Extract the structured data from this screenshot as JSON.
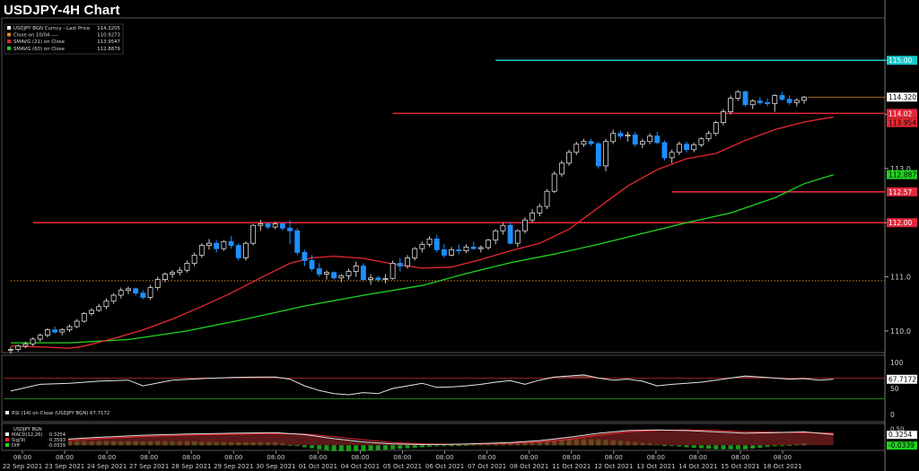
{
  "title": "USDJPY-4H Chart",
  "colors": {
    "background": "#000000",
    "frame": "#8a8a8a",
    "up_candle": "#ffffff",
    "down_candle": "#1e8fff",
    "sma21": "#e8282f",
    "sma60": "#1fd51f",
    "resistance": "#e0283c",
    "target": "#18c8cc",
    "close_ref": "#e08a20",
    "last_price": "#ffffff"
  },
  "chart_data": {
    "type": "candlestick",
    "title": "USDJPY-4H Chart",
    "legend": {
      "placement": "top-left",
      "entries": [
        {
          "label": "USDJPY BGN Curncy - Last Price",
          "value": "114.3205",
          "color": "#ffffff"
        },
        {
          "label": "Close on 10/04 ----",
          "value": "110.9273",
          "color": "#e08a20"
        },
        {
          "label": "SMAVG (21) on Close",
          "value": "113.9547",
          "color": "#e8282f"
        },
        {
          "label": "SMAVG (60) on Close",
          "value": "112.8879",
          "color": "#1fd51f"
        }
      ]
    },
    "y_range": [
      109.6,
      115.75
    ],
    "y_ticks": [
      "110.0",
      "111.0",
      "112.0",
      "113.0",
      "114.0",
      "115.0"
    ],
    "x_date_labels": [
      "22 Sep 2021",
      "23 Sep 2021",
      "24 Sep 2021",
      "27 Sep 2021",
      "28 Sep 2021",
      "29 Sep 2021",
      "30 Sep 2021",
      "01 Oct 2021",
      "04 Oct 2021",
      "05 Oct 2021",
      "06 Oct 2021",
      "07 Oct 2021",
      "08 Oct 2021",
      "11 Oct 2021",
      "12 Oct 2021",
      "13 Oct 2021",
      "14 Oct 2021",
      "15 Oct 2021",
      "18 Oct 2021"
    ],
    "x_time_label": "08:00",
    "horizontal_levels": [
      {
        "value": 115.0,
        "label": "115.00",
        "color": "#18c8cc",
        "start_bar": 66
      },
      {
        "value": 114.02,
        "label": "114.02",
        "color": "#e0283c",
        "start_bar": 52
      },
      {
        "value": 112.57,
        "label": "112.57",
        "color": "#e0283c",
        "start_bar": 90
      },
      {
        "value": 112.0,
        "label": "112.00",
        "color": "#e0283c",
        "start_bar": 3
      },
      {
        "value": 110.9273,
        "label": "110.9273",
        "color": "#e08a20",
        "style": "dotted",
        "start_bar": 0
      }
    ],
    "last_price_label": "114.3205",
    "sma21_label": "113.9547",
    "sma60_label": "112.8879",
    "candles_ohlc": [
      [
        109.65,
        109.7,
        109.58,
        109.66
      ],
      [
        109.66,
        109.75,
        109.62,
        109.72
      ],
      [
        109.72,
        109.8,
        109.68,
        109.76
      ],
      [
        109.76,
        109.88,
        109.72,
        109.85
      ],
      [
        109.85,
        109.95,
        109.8,
        109.92
      ],
      [
        109.92,
        110.05,
        109.88,
        110.02
      ],
      [
        110.02,
        110.08,
        109.95,
        109.98
      ],
      [
        109.98,
        110.05,
        109.92,
        110.02
      ],
      [
        110.02,
        110.12,
        109.98,
        110.08
      ],
      [
        110.08,
        110.22,
        110.05,
        110.18
      ],
      [
        110.18,
        110.35,
        110.15,
        110.32
      ],
      [
        110.32,
        110.42,
        110.28,
        110.38
      ],
      [
        110.38,
        110.5,
        110.35,
        110.45
      ],
      [
        110.45,
        110.6,
        110.4,
        110.55
      ],
      [
        110.55,
        110.7,
        110.5,
        110.66
      ],
      [
        110.66,
        110.8,
        110.6,
        110.75
      ],
      [
        110.75,
        110.82,
        110.68,
        110.78
      ],
      [
        110.78,
        110.8,
        110.65,
        110.7
      ],
      [
        110.7,
        110.75,
        110.58,
        110.62
      ],
      [
        110.62,
        110.85,
        110.58,
        110.8
      ],
      [
        110.8,
        111.0,
        110.75,
        110.95
      ],
      [
        110.95,
        111.08,
        110.9,
        111.05
      ],
      [
        111.05,
        111.12,
        110.98,
        111.08
      ],
      [
        111.08,
        111.18,
        111.02,
        111.12
      ],
      [
        111.12,
        111.3,
        111.08,
        111.25
      ],
      [
        111.25,
        111.45,
        111.2,
        111.4
      ],
      [
        111.4,
        111.62,
        111.35,
        111.58
      ],
      [
        111.58,
        111.7,
        111.5,
        111.62
      ],
      [
        111.62,
        111.68,
        111.45,
        111.52
      ],
      [
        111.52,
        111.68,
        111.48,
        111.65
      ],
      [
        111.65,
        111.75,
        111.52,
        111.58
      ],
      [
        111.58,
        111.62,
        111.3,
        111.35
      ],
      [
        111.35,
        111.65,
        111.3,
        111.62
      ],
      [
        111.62,
        111.98,
        111.58,
        111.95
      ],
      [
        111.95,
        112.05,
        111.85,
        111.98
      ],
      [
        111.98,
        112.0,
        111.88,
        111.92
      ],
      [
        111.92,
        112.02,
        111.88,
        111.98
      ],
      [
        111.98,
        112.0,
        111.85,
        111.9
      ],
      [
        111.9,
        112.05,
        111.6,
        111.85
      ],
      [
        111.85,
        111.9,
        111.4,
        111.45
      ],
      [
        111.45,
        111.5,
        111.2,
        111.3
      ],
      [
        111.3,
        111.4,
        111.1,
        111.15
      ],
      [
        111.15,
        111.25,
        111.0,
        111.05
      ],
      [
        111.05,
        111.12,
        110.95,
        111.08
      ],
      [
        111.08,
        111.1,
        110.95,
        110.98
      ],
      [
        110.98,
        111.05,
        110.9,
        111.02
      ],
      [
        111.02,
        111.15,
        110.95,
        111.1
      ],
      [
        111.1,
        111.28,
        111.0,
        111.2
      ],
      [
        111.2,
        111.25,
        110.9,
        110.95
      ],
      [
        110.95,
        111.05,
        110.85,
        110.98
      ],
      [
        110.98,
        111.02,
        110.9,
        110.95
      ],
      [
        110.95,
        111.05,
        110.88,
        110.97
      ],
      [
        110.97,
        111.3,
        110.95,
        111.25
      ],
      [
        111.25,
        111.35,
        111.1,
        111.2
      ],
      [
        111.2,
        111.4,
        111.15,
        111.35
      ],
      [
        111.35,
        111.55,
        111.3,
        111.52
      ],
      [
        111.52,
        111.65,
        111.45,
        111.6
      ],
      [
        111.6,
        111.75,
        111.55,
        111.7
      ],
      [
        111.7,
        111.78,
        111.45,
        111.5
      ],
      [
        111.5,
        111.6,
        111.35,
        111.4
      ],
      [
        111.4,
        111.55,
        111.38,
        111.5
      ],
      [
        111.5,
        111.6,
        111.42,
        111.48
      ],
      [
        111.48,
        111.6,
        111.44,
        111.55
      ],
      [
        111.55,
        111.65,
        111.5,
        111.52
      ],
      [
        111.52,
        111.58,
        111.45,
        111.54
      ],
      [
        111.54,
        111.7,
        111.5,
        111.68
      ],
      [
        111.68,
        111.88,
        111.6,
        111.85
      ],
      [
        111.85,
        112.0,
        111.78,
        111.95
      ],
      [
        111.95,
        112.0,
        111.6,
        111.62
      ],
      [
        111.62,
        111.88,
        111.55,
        111.85
      ],
      [
        111.85,
        112.1,
        111.8,
        112.05
      ],
      [
        112.05,
        112.25,
        112.0,
        112.18
      ],
      [
        112.18,
        112.35,
        112.12,
        112.3
      ],
      [
        112.3,
        112.62,
        112.25,
        112.58
      ],
      [
        112.58,
        112.95,
        112.55,
        112.9
      ],
      [
        112.9,
        113.15,
        112.85,
        113.1
      ],
      [
        113.1,
        113.35,
        113.05,
        113.3
      ],
      [
        113.3,
        113.5,
        113.25,
        113.45
      ],
      [
        113.45,
        113.55,
        113.4,
        113.5
      ],
      [
        113.5,
        113.55,
        113.42,
        113.46
      ],
      [
        113.46,
        113.5,
        113.0,
        113.05
      ],
      [
        113.05,
        113.55,
        112.95,
        113.5
      ],
      [
        113.5,
        113.72,
        113.45,
        113.65
      ],
      [
        113.65,
        113.7,
        113.55,
        113.6
      ],
      [
        113.6,
        113.68,
        113.5,
        113.62
      ],
      [
        113.62,
        113.68,
        113.4,
        113.45
      ],
      [
        113.45,
        113.55,
        113.38,
        113.5
      ],
      [
        113.5,
        113.65,
        113.45,
        113.6
      ],
      [
        113.6,
        113.68,
        113.45,
        113.48
      ],
      [
        113.48,
        113.52,
        113.15,
        113.2
      ],
      [
        113.2,
        113.35,
        113.1,
        113.3
      ],
      [
        113.3,
        113.5,
        113.25,
        113.45
      ],
      [
        113.45,
        113.5,
        113.3,
        113.35
      ],
      [
        113.35,
        113.48,
        113.3,
        113.44
      ],
      [
        113.44,
        113.58,
        113.4,
        113.55
      ],
      [
        113.55,
        113.7,
        113.5,
        113.65
      ],
      [
        113.65,
        113.88,
        113.6,
        113.85
      ],
      [
        113.85,
        114.1,
        113.8,
        114.05
      ],
      [
        114.05,
        114.35,
        114.0,
        114.3
      ],
      [
        114.3,
        114.45,
        114.25,
        114.42
      ],
      [
        114.42,
        114.44,
        114.15,
        114.18
      ],
      [
        114.18,
        114.28,
        114.1,
        114.25
      ],
      [
        114.25,
        114.32,
        114.18,
        114.22
      ],
      [
        114.22,
        114.3,
        114.15,
        114.2
      ],
      [
        114.2,
        114.38,
        114.05,
        114.35
      ],
      [
        114.35,
        114.42,
        114.25,
        114.28
      ],
      [
        114.28,
        114.35,
        114.18,
        114.22
      ],
      [
        114.22,
        114.3,
        114.15,
        114.26
      ],
      [
        114.26,
        114.34,
        114.2,
        114.3205
      ]
    ],
    "sma21": [
      [
        0,
        109.72
      ],
      [
        5,
        109.7
      ],
      [
        8,
        109.68
      ],
      [
        10,
        109.72
      ],
      [
        14,
        109.86
      ],
      [
        18,
        110.02
      ],
      [
        22,
        110.22
      ],
      [
        26,
        110.45
      ],
      [
        30,
        110.7
      ],
      [
        34,
        110.98
      ],
      [
        38,
        111.25
      ],
      [
        41,
        111.35
      ],
      [
        44,
        111.38
      ],
      [
        48,
        111.34
      ],
      [
        52,
        111.24
      ],
      [
        56,
        111.16
      ],
      [
        60,
        111.18
      ],
      [
        64,
        111.32
      ],
      [
        68,
        111.48
      ],
      [
        72,
        111.62
      ],
      [
        76,
        111.88
      ],
      [
        80,
        112.28
      ],
      [
        84,
        112.68
      ],
      [
        88,
        112.98
      ],
      [
        92,
        113.18
      ],
      [
        96,
        113.28
      ],
      [
        100,
        113.52
      ],
      [
        104,
        113.72
      ],
      [
        108,
        113.86
      ],
      [
        112,
        113.9547
      ]
    ],
    "sma60": [
      [
        0,
        109.78
      ],
      [
        8,
        109.78
      ],
      [
        16,
        109.84
      ],
      [
        24,
        110.0
      ],
      [
        32,
        110.22
      ],
      [
        40,
        110.46
      ],
      [
        48,
        110.66
      ],
      [
        56,
        110.84
      ],
      [
        62,
        111.06
      ],
      [
        68,
        111.26
      ],
      [
        74,
        111.42
      ],
      [
        80,
        111.6
      ],
      [
        86,
        111.8
      ],
      [
        92,
        112.0
      ],
      [
        98,
        112.18
      ],
      [
        104,
        112.46
      ],
      [
        108,
        112.72
      ],
      [
        112,
        112.8879
      ]
    ],
    "rsi": {
      "label": "RSI (14)  on Close (USDJPY BGN) 67.7172",
      "last": "67.7172",
      "y_ticks": [
        "100",
        "50",
        "0"
      ],
      "overbought": 70,
      "oversold": 30,
      "values": [
        [
          0,
          45
        ],
        [
          4,
          58
        ],
        [
          8,
          60
        ],
        [
          12,
          64
        ],
        [
          16,
          66
        ],
        [
          18,
          55
        ],
        [
          22,
          66
        ],
        [
          26,
          69
        ],
        [
          30,
          71
        ],
        [
          34,
          72
        ],
        [
          36,
          72
        ],
        [
          38,
          68
        ],
        [
          40,
          55
        ],
        [
          42,
          46
        ],
        [
          44,
          40
        ],
        [
          46,
          38
        ],
        [
          48,
          42
        ],
        [
          50,
          40
        ],
        [
          52,
          50
        ],
        [
          54,
          55
        ],
        [
          56,
          60
        ],
        [
          58,
          52
        ],
        [
          60,
          53
        ],
        [
          62,
          55
        ],
        [
          64,
          58
        ],
        [
          66,
          62
        ],
        [
          68,
          65
        ],
        [
          70,
          58
        ],
        [
          72,
          66
        ],
        [
          74,
          72
        ],
        [
          76,
          74
        ],
        [
          78,
          76
        ],
        [
          80,
          70
        ],
        [
          82,
          66
        ],
        [
          84,
          68
        ],
        [
          86,
          64
        ],
        [
          88,
          55
        ],
        [
          90,
          58
        ],
        [
          92,
          60
        ],
        [
          94,
          62
        ],
        [
          96,
          66
        ],
        [
          98,
          70
        ],
        [
          100,
          74
        ],
        [
          102,
          72
        ],
        [
          104,
          70
        ],
        [
          106,
          68
        ],
        [
          108,
          69
        ],
        [
          110,
          66
        ],
        [
          112,
          67.7172
        ]
      ]
    },
    "macd": {
      "title": "USDJPY BGN",
      "entries": [
        {
          "label": "MACD(12,26)",
          "value": "0.3254",
          "color": "#ffffff"
        },
        {
          "label": "Sig(9)",
          "value": "0.3593",
          "color": "#e8282f"
        },
        {
          "label": "Diff",
          "value": "-0.0339",
          "color": "#1fd51f"
        }
      ],
      "y_ticks": [
        "0.50"
      ],
      "last_macd": "0.3254",
      "last_diff": "-0.0339",
      "macd_values": [
        [
          0,
          0.1
        ],
        [
          6,
          0.16
        ],
        [
          12,
          0.24
        ],
        [
          18,
          0.3
        ],
        [
          24,
          0.34
        ],
        [
          30,
          0.36
        ],
        [
          36,
          0.38
        ],
        [
          40,
          0.32
        ],
        [
          44,
          0.2
        ],
        [
          48,
          0.1
        ],
        [
          52,
          0.04
        ],
        [
          56,
          0.02
        ],
        [
          60,
          0.03
        ],
        [
          64,
          0.05
        ],
        [
          68,
          0.08
        ],
        [
          72,
          0.14
        ],
        [
          76,
          0.24
        ],
        [
          80,
          0.36
        ],
        [
          84,
          0.44
        ],
        [
          88,
          0.46
        ],
        [
          92,
          0.44
        ],
        [
          96,
          0.4
        ],
        [
          100,
          0.36
        ],
        [
          104,
          0.38
        ],
        [
          108,
          0.4
        ],
        [
          112,
          0.3254
        ]
      ],
      "signal_values": [
        [
          0,
          0.06
        ],
        [
          6,
          0.12
        ],
        [
          12,
          0.2
        ],
        [
          18,
          0.26
        ],
        [
          24,
          0.3
        ],
        [
          30,
          0.33
        ],
        [
          36,
          0.35
        ],
        [
          40,
          0.34
        ],
        [
          44,
          0.26
        ],
        [
          48,
          0.16
        ],
        [
          52,
          0.08
        ],
        [
          56,
          0.04
        ],
        [
          60,
          0.03
        ],
        [
          64,
          0.04
        ],
        [
          68,
          0.06
        ],
        [
          72,
          0.1
        ],
        [
          76,
          0.18
        ],
        [
          80,
          0.3
        ],
        [
          84,
          0.4
        ],
        [
          88,
          0.45
        ],
        [
          92,
          0.46
        ],
        [
          96,
          0.44
        ],
        [
          100,
          0.4
        ],
        [
          104,
          0.39
        ],
        [
          108,
          0.38
        ],
        [
          112,
          0.3593
        ]
      ],
      "y_range": [
        -0.1,
        0.6
      ]
    }
  }
}
